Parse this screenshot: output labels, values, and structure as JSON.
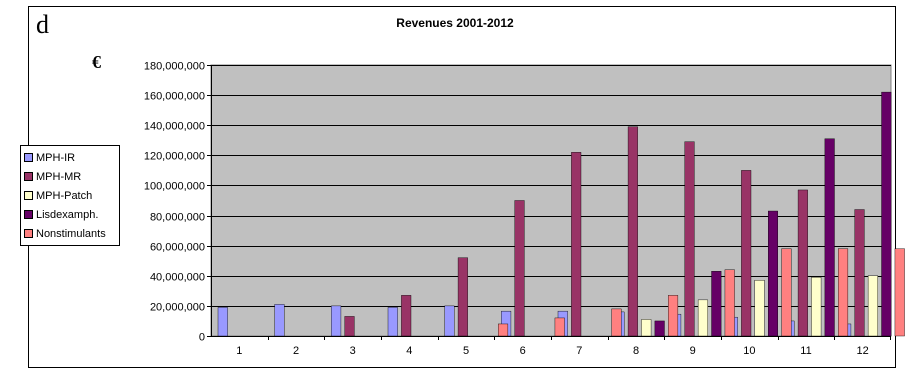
{
  "panel_label": "d",
  "currency_symbol": "€",
  "chart_data": {
    "type": "bar",
    "title": "Revenues 2001-2012",
    "xlabel": "",
    "ylabel": "",
    "categories": [
      "1",
      "2",
      "3",
      "4",
      "5",
      "6",
      "7",
      "8",
      "9",
      "10",
      "11",
      "12"
    ],
    "ylim": [
      0,
      180000000
    ],
    "yticks": [
      0,
      20000000,
      40000000,
      60000000,
      80000000,
      100000000,
      120000000,
      140000000,
      160000000,
      180000000
    ],
    "ytick_labels": [
      "0",
      "20,000,000",
      "40,000,000",
      "60,000,000",
      "80,000,000",
      "100,000,000",
      "120,000,000",
      "140,000,000",
      "160,000,000",
      "180,000,000"
    ],
    "grid": "horizontal",
    "legend_position": "left",
    "series": [
      {
        "name": "MPH-IR",
        "color": "#9999ff",
        "values": [
          19000000,
          21000000,
          20000000,
          19000000,
          20000000,
          16500000,
          16500000,
          16000000,
          14500000,
          12500000,
          10000000,
          8000000
        ]
      },
      {
        "name": "MPH-MR",
        "color": "#993366",
        "values": [
          0,
          0,
          13000000,
          27000000,
          52000000,
          90000000,
          122000000,
          139000000,
          129000000,
          110000000,
          97000000,
          84000000
        ]
      },
      {
        "name": "MPH-Patch",
        "color": "#ffffcc",
        "values": [
          0,
          0,
          0,
          0,
          0,
          0,
          0,
          11000000,
          24000000,
          37000000,
          39000000,
          40000000
        ]
      },
      {
        "name": "Lisdexamph.",
        "color": "#660066",
        "values": [
          0,
          0,
          0,
          0,
          0,
          0,
          0,
          10000000,
          43000000,
          83000000,
          131000000,
          162000000
        ]
      },
      {
        "name": "Nonstimulants",
        "color": "#ff8080",
        "values": [
          0,
          0,
          0,
          0,
          8000000,
          12000000,
          18000000,
          27000000,
          44000000,
          58000000,
          58000000,
          58000000
        ]
      }
    ]
  }
}
